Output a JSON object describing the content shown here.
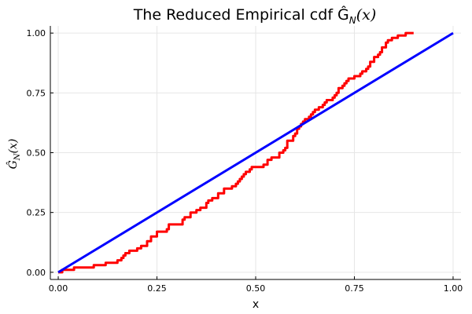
{
  "chart_data": {
    "type": "line",
    "title": "The Reduced Empirical cdf  Ĝ",
    "title_sub": "N",
    "title_arg": "(x)",
    "xlabel": "x",
    "ylabel": "Ĝ",
    "ylabel_sub": "N",
    "ylabel_arg": "(x)",
    "xlim": [
      -0.02,
      1.02
    ],
    "ylim": [
      -0.03,
      1.03
    ],
    "xticks": [
      0.0,
      0.25,
      0.5,
      0.75,
      1.0
    ],
    "xtick_labels": [
      "0.00",
      "0.25",
      "0.50",
      "0.75",
      "1.00"
    ],
    "yticks": [
      0.0,
      0.25,
      0.5,
      0.75,
      1.0
    ],
    "ytick_labels": [
      "0.00",
      "0.25",
      "0.50",
      "0.75",
      "1.00"
    ],
    "grid": true,
    "series": [
      {
        "color": "#ff0000",
        "step": true,
        "x": [
          0.0,
          0.01,
          0.04,
          0.09,
          0.12,
          0.15,
          0.16,
          0.165,
          0.17,
          0.18,
          0.2,
          0.21,
          0.225,
          0.235,
          0.24,
          0.25,
          0.275,
          0.28,
          0.3,
          0.315,
          0.32,
          0.335,
          0.35,
          0.36,
          0.375,
          0.38,
          0.39,
          0.405,
          0.42,
          0.44,
          0.45,
          0.455,
          0.46,
          0.465,
          0.47,
          0.475,
          0.48,
          0.485,
          0.49,
          0.5,
          0.52,
          0.53,
          0.54,
          0.55,
          0.56,
          0.57,
          0.575,
          0.58,
          0.595,
          0.6,
          0.605,
          0.61,
          0.615,
          0.62,
          0.625,
          0.63,
          0.635,
          0.64,
          0.645,
          0.65,
          0.655,
          0.66,
          0.67,
          0.675,
          0.68,
          0.69,
          0.695,
          0.7,
          0.705,
          0.71,
          0.72,
          0.725,
          0.73,
          0.735,
          0.74,
          0.75,
          0.76,
          0.765,
          0.77,
          0.78,
          0.785,
          0.79,
          0.8,
          0.81,
          0.815,
          0.82,
          0.83,
          0.835,
          0.84,
          0.845,
          0.85,
          0.86,
          0.87,
          0.88,
          0.89,
          0.9
        ],
        "y": [
          0.0,
          0.01,
          0.02,
          0.03,
          0.04,
          0.05,
          0.06,
          0.07,
          0.08,
          0.09,
          0.1,
          0.11,
          0.13,
          0.15,
          0.15,
          0.17,
          0.18,
          0.2,
          0.2,
          0.22,
          0.23,
          0.25,
          0.26,
          0.27,
          0.29,
          0.3,
          0.31,
          0.33,
          0.35,
          0.36,
          0.37,
          0.38,
          0.39,
          0.4,
          0.41,
          0.42,
          0.42,
          0.43,
          0.44,
          0.44,
          0.45,
          0.47,
          0.48,
          0.48,
          0.5,
          0.51,
          0.52,
          0.55,
          0.57,
          0.58,
          0.6,
          0.61,
          0.62,
          0.63,
          0.64,
          0.64,
          0.65,
          0.66,
          0.67,
          0.68,
          0.68,
          0.69,
          0.7,
          0.71,
          0.72,
          0.72,
          0.73,
          0.74,
          0.75,
          0.77,
          0.78,
          0.79,
          0.8,
          0.81,
          0.81,
          0.82,
          0.82,
          0.83,
          0.84,
          0.85,
          0.86,
          0.88,
          0.9,
          0.91,
          0.92,
          0.94,
          0.96,
          0.97,
          0.97,
          0.98,
          0.98,
          0.99,
          0.99,
          1.0,
          1.0,
          1.0
        ]
      },
      {
        "color": "#0000ff",
        "step": false,
        "x": [
          0.0,
          1.0
        ],
        "y": [
          0.0,
          1.0
        ]
      }
    ]
  }
}
